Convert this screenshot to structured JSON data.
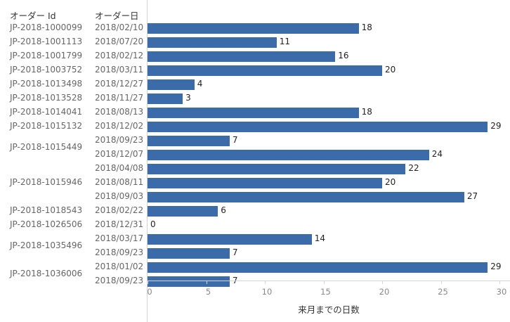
{
  "chart_data": {
    "type": "bar",
    "orientation": "horizontal",
    "header": {
      "order_id": "オーダー Id",
      "order_date": "オーダー日"
    },
    "xlabel": "来月までの日数",
    "xlim": [
      0,
      30
    ],
    "xticks": [
      "0",
      "5",
      "10",
      "15",
      "20",
      "25",
      "30"
    ],
    "bar_color": "#3c6ba9",
    "grid": false,
    "rows": [
      {
        "order_id": "JP-2018-1000099",
        "order_date": "2018/02/10",
        "value": 18
      },
      {
        "order_id": "JP-2018-1001113",
        "order_date": "2018/07/20",
        "value": 11
      },
      {
        "order_id": "JP-2018-1001799",
        "order_date": "2018/02/12",
        "value": 16
      },
      {
        "order_id": "JP-2018-1003752",
        "order_date": "2018/03/11",
        "value": 20
      },
      {
        "order_id": "JP-2018-1013498",
        "order_date": "2018/12/27",
        "value": 4
      },
      {
        "order_id": "JP-2018-1013528",
        "order_date": "2018/11/27",
        "value": 3
      },
      {
        "order_id": "JP-2018-1014041",
        "order_date": "2018/08/13",
        "value": 18
      },
      {
        "order_id": "JP-2018-1015132",
        "order_date": "2018/12/02",
        "value": 29
      },
      {
        "order_id": "JP-2018-1015449",
        "order_date": "2018/09/23",
        "value": 7
      },
      {
        "order_id": "",
        "order_date": "2018/12/07",
        "value": 24
      },
      {
        "order_id": "JP-2018-1015946",
        "order_date": "2018/04/08",
        "value": 22
      },
      {
        "order_id": "",
        "order_date": "2018/08/11",
        "value": 20
      },
      {
        "order_id": "",
        "order_date": "2018/09/03",
        "value": 27
      },
      {
        "order_id": "JP-2018-1018543",
        "order_date": "2018/02/22",
        "value": 6
      },
      {
        "order_id": "JP-2018-1026506",
        "order_date": "2018/12/31",
        "value": 0
      },
      {
        "order_id": "JP-2018-1035496",
        "order_date": "2018/03/17",
        "value": 14
      },
      {
        "order_id": "",
        "order_date": "2018/09/23",
        "value": 7
      },
      {
        "order_id": "JP-2018-1036006",
        "order_date": "2018/01/02",
        "value": 29
      },
      {
        "order_id": "",
        "order_date": "2018/09/23",
        "value": 7
      }
    ]
  }
}
